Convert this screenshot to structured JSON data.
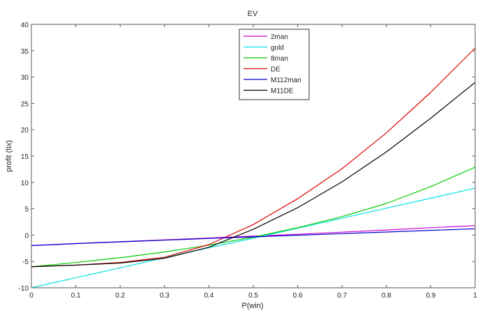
{
  "chart_data": {
    "type": "line",
    "title": "EV",
    "xlabel": "P(win)",
    "ylabel": "profit (tix)",
    "xlim": [
      0,
      1
    ],
    "ylim": [
      -10,
      40
    ],
    "xticks": [
      "0",
      "0.1",
      "0.2",
      "0.3",
      "0.4",
      "0.5",
      "0.6",
      "0.7",
      "0.8",
      "0.9",
      "1"
    ],
    "yticks": [
      "-10",
      "-5",
      "0",
      "5",
      "10",
      "15",
      "20",
      "25",
      "30",
      "35",
      "40"
    ],
    "grid": false,
    "legend_position": "top-center",
    "x": [
      0,
      0.1,
      0.2,
      0.3,
      0.4,
      0.5,
      0.6,
      0.7,
      0.8,
      0.9,
      1
    ],
    "series": [
      {
        "name": "2man",
        "color": "#cc00cc",
        "values": [
          -2,
          -1.6,
          -1.24,
          -0.9,
          -0.56,
          -0.2,
          0.16,
          0.56,
          0.96,
          1.4,
          1.8
        ]
      },
      {
        "name": "gold",
        "color": "#00e0e0",
        "values": [
          -10,
          -8.1,
          -6.2,
          -4.3,
          -2.4,
          -0.6,
          1.3,
          3.2,
          5.1,
          7.0,
          8.9
        ]
      },
      {
        "name": "8man",
        "color": "#00cc00",
        "values": [
          -6,
          -5.2,
          -4.3,
          -3.2,
          -1.9,
          -0.4,
          1.4,
          3.5,
          6.0,
          9.2,
          12.9
        ]
      },
      {
        "name": "DE",
        "color": "#dd0000",
        "values": [
          -6,
          -5.7,
          -5.2,
          -4.2,
          -1.8,
          2.0,
          6.9,
          12.6,
          19.4,
          27.1,
          35.5
        ]
      },
      {
        "name": "M112man",
        "color": "#0000cc",
        "values": [
          -2,
          -1.62,
          -1.28,
          -0.96,
          -0.64,
          -0.34,
          -0.02,
          0.28,
          0.58,
          0.9,
          1.2
        ]
      },
      {
        "name": "M11DE",
        "color": "#000000",
        "values": [
          -6,
          -5.7,
          -5.3,
          -4.4,
          -2.3,
          1.1,
          5.2,
          10.1,
          15.8,
          22.2,
          29.0
        ]
      }
    ]
  }
}
